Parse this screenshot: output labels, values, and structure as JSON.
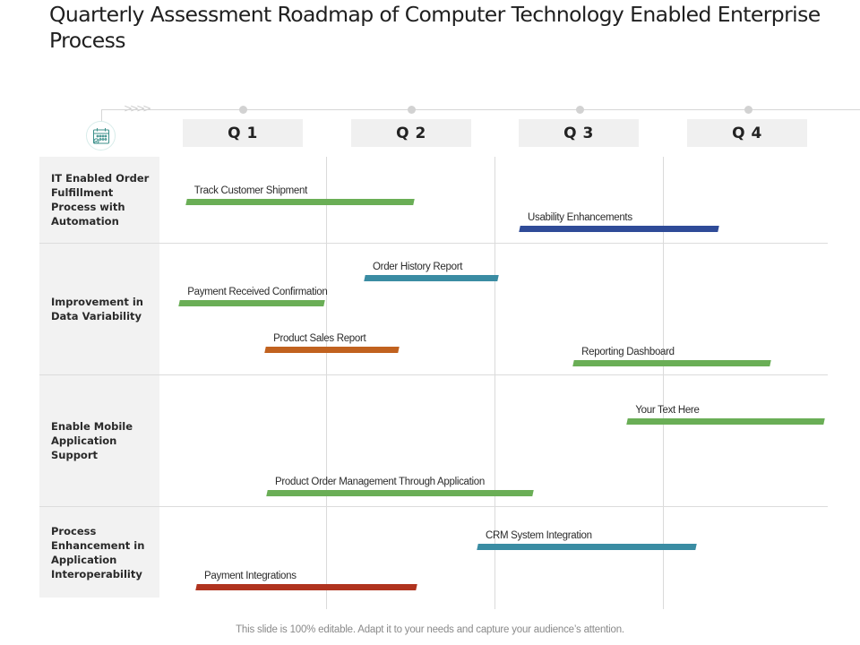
{
  "title": "Quarterly Assessment Roadmap of Computer Technology Enabled Enterprise Process",
  "timeline": {
    "icon": "calendar-icon",
    "chevrons": ">>>>",
    "quarters": [
      "Q 1",
      "Q 2",
      "Q 3",
      "Q 4"
    ]
  },
  "rows": [
    {
      "label": "IT Enabled Order Fulfillment Process with Automation"
    },
    {
      "label": "Improvement in Data Variability"
    },
    {
      "label": "Enable Mobile Application Support"
    },
    {
      "label": "Process Enhancement in Application Interoperability"
    }
  ],
  "colors": {
    "green": "#6aae56",
    "navy": "#2f4b98",
    "teal": "#3a8ca3",
    "orange": "#c1621f",
    "red": "#b0331f"
  },
  "tasks": [
    {
      "label": "Track Customer Shipment",
      "row": 0,
      "color": "#6aae56",
      "start_quarter": 0.02,
      "end_quarter": 1.37
    },
    {
      "label": "Usability Enhancements",
      "row": 0,
      "color": "#2f4b98",
      "start_quarter": 2.0,
      "end_quarter": 3.18
    },
    {
      "label": "Order History Report",
      "row": 1,
      "color": "#3a8ca3",
      "start_quarter": 1.08,
      "end_quarter": 1.87
    },
    {
      "label": "Payment Received Confirmation",
      "row": 1,
      "color": "#6aae56",
      "start_quarter": -0.02,
      "end_quarter": 0.84
    },
    {
      "label": "Product Sales Report",
      "row": 1,
      "color": "#c1621f",
      "start_quarter": 0.49,
      "end_quarter": 1.28
    },
    {
      "label": "Reporting Dashboard",
      "row": 1,
      "color": "#6aae56",
      "start_quarter": 2.32,
      "end_quarter": 3.49
    },
    {
      "label": "Your Text Here",
      "row": 2,
      "color": "#6aae56",
      "start_quarter": 2.64,
      "end_quarter": 3.81
    },
    {
      "label": "Product Order Management Through Application",
      "row": 2,
      "color": "#6aae56",
      "start_quarter": 0.5,
      "end_quarter": 2.08
    },
    {
      "label": "CRM System Integration",
      "row": 3,
      "color": "#3a8ca3",
      "start_quarter": 1.75,
      "end_quarter": 3.05
    },
    {
      "label": "Payment Integrations",
      "row": 3,
      "color": "#b0331f",
      "start_quarter": 0.08,
      "end_quarter": 1.39
    }
  ],
  "footer": "This slide is 100% editable. Adapt it to your needs and capture your audience’s attention."
}
